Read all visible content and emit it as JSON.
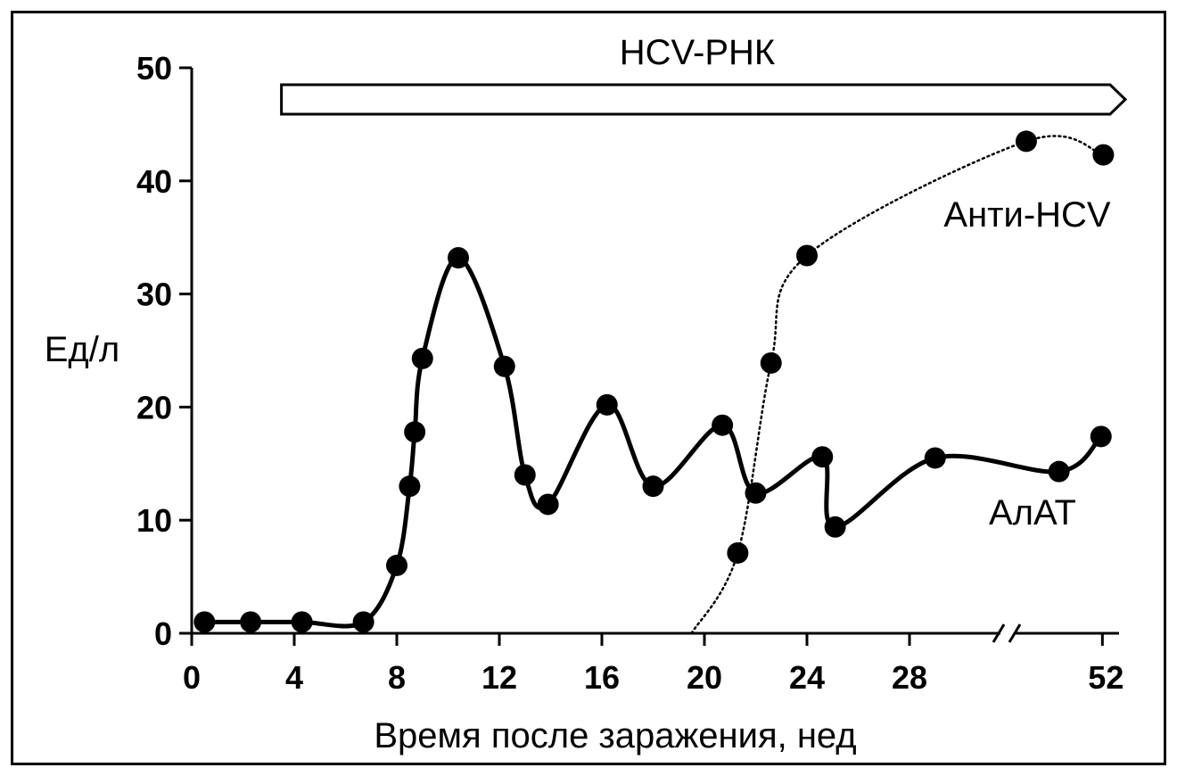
{
  "chart_data": {
    "type": "line",
    "ylabel": "Ед/л",
    "xlabel": "Время после заражения, нед",
    "ylim": [
      0,
      50
    ],
    "yticks": [
      "0",
      "10",
      "20",
      "30",
      "40",
      "50"
    ],
    "xticks": [
      "0",
      "4",
      "8",
      "12",
      "16",
      "20",
      "24",
      "28",
      "52"
    ],
    "axis_break": "between 28 and 52 weeks",
    "bar_annotation": {
      "label": "HCV-РНК",
      "x_start_weeks": 3.5,
      "extends_to": "end of axis (arrow)"
    },
    "series": [
      {
        "name": "АлАТ",
        "style": "solid",
        "color": "#000000",
        "points": [
          {
            "x": 0.5,
            "y": 1
          },
          {
            "x": 2.3,
            "y": 1
          },
          {
            "x": 4.3,
            "y": 1
          },
          {
            "x": 6.7,
            "y": 1
          },
          {
            "x": 8,
            "y": 6
          },
          {
            "x": 8.5,
            "y": 13
          },
          {
            "x": 8.7,
            "y": 17.8
          },
          {
            "x": 9,
            "y": 24.3
          },
          {
            "x": 10.4,
            "y": 33.2
          },
          {
            "x": 12.2,
            "y": 23.6
          },
          {
            "x": 13,
            "y": 14
          },
          {
            "x": 13.9,
            "y": 11.4
          },
          {
            "x": 16.2,
            "y": 20.2
          },
          {
            "x": 18,
            "y": 13
          },
          {
            "x": 20.7,
            "y": 18.4
          },
          {
            "x": 22,
            "y": 12.4
          },
          {
            "x": 24.6,
            "y": 15.6
          },
          {
            "x": 25.1,
            "y": 9.4
          },
          {
            "x": 29,
            "y": 15.5
          },
          {
            "x": 42,
            "y": 14.3
          },
          {
            "x": 51,
            "y": 17.4
          }
        ]
      },
      {
        "name": "Анти-HCV",
        "style": "dotted",
        "color": "#000000",
        "points": [
          {
            "x": 19.5,
            "y": 0
          },
          {
            "x": 21.3,
            "y": 7.1
          },
          {
            "x": 22.6,
            "y": 23.9
          },
          {
            "x": 24,
            "y": 33.4
          },
          {
            "x": 35,
            "y": 43.5
          },
          {
            "x": 51.5,
            "y": 42.3
          }
        ]
      }
    ]
  }
}
